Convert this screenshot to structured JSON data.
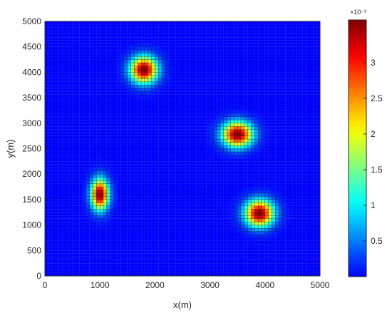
{
  "chart_data": {
    "type": "heatmap",
    "xlabel": "x(m)",
    "ylabel": "y(m)",
    "xlim": [
      0,
      5000
    ],
    "ylim": [
      0,
      5000
    ],
    "x_ticks": [
      "0",
      "1000",
      "2000",
      "3000",
      "4000",
      "5000"
    ],
    "y_ticks": [
      "0",
      "500",
      "1000",
      "1500",
      "2000",
      "2500",
      "3000",
      "3500",
      "4000",
      "4500",
      "5000"
    ],
    "grid_resolution_m": 62.5,
    "grid_lines": true,
    "colormap": "jet",
    "colorbar": {
      "limits": [
        0,
        0.0036
      ],
      "ticks": [
        "0.5",
        "1",
        "1.5",
        "2",
        "2.5",
        "3"
      ],
      "exponent_label": "×10⁻³"
    },
    "peaks": [
      {
        "x": 1800,
        "y": 4050,
        "sigma_x": 170,
        "sigma_y": 180,
        "amplitude": 0.0036
      },
      {
        "x": 3500,
        "y": 2780,
        "sigma_x": 190,
        "sigma_y": 170,
        "amplitude": 0.0036
      },
      {
        "x": 1000,
        "y": 1600,
        "sigma_x": 110,
        "sigma_y": 210,
        "amplitude": 0.0036
      },
      {
        "x": 3900,
        "y": 1230,
        "sigma_x": 180,
        "sigma_y": 180,
        "amplitude": 0.0036
      }
    ]
  }
}
